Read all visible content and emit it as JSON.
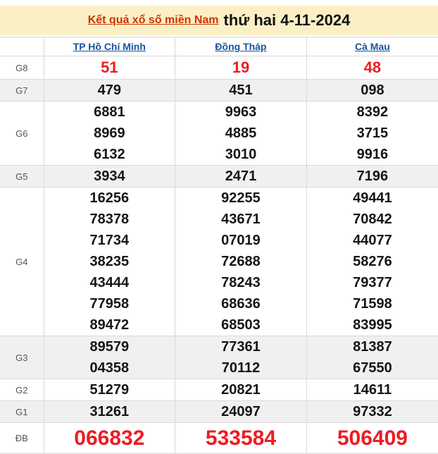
{
  "header": {
    "title_link": "Kết quả xổ số miền Nam",
    "title_date": "thứ hai 4-11-2024"
  },
  "table": {
    "columns": [
      "TP Hồ Chí Minh",
      "Đồng Tháp",
      "Cà Mau"
    ],
    "rows": [
      {
        "label": "G8",
        "style": "g8",
        "values": [
          [
            "51"
          ],
          [
            "19"
          ],
          [
            "48"
          ]
        ]
      },
      {
        "label": "G7",
        "style": "",
        "values": [
          [
            "479"
          ],
          [
            "451"
          ],
          [
            "098"
          ]
        ]
      },
      {
        "label": "G6",
        "style": "",
        "values": [
          [
            "6881",
            "8969",
            "6132"
          ],
          [
            "9963",
            "4885",
            "3010"
          ],
          [
            "8392",
            "3715",
            "9916"
          ]
        ]
      },
      {
        "label": "G5",
        "style": "",
        "values": [
          [
            "3934"
          ],
          [
            "2471"
          ],
          [
            "7196"
          ]
        ]
      },
      {
        "label": "G4",
        "style": "",
        "values": [
          [
            "16256",
            "78378",
            "71734",
            "38235",
            "43444",
            "77958",
            "89472"
          ],
          [
            "92255",
            "43671",
            "07019",
            "72688",
            "78243",
            "68636",
            "68503"
          ],
          [
            "49441",
            "70842",
            "44077",
            "58276",
            "79377",
            "71598",
            "83995"
          ]
        ]
      },
      {
        "label": "G3",
        "style": "",
        "values": [
          [
            "89579",
            "04358"
          ],
          [
            "77361",
            "70112"
          ],
          [
            "81387",
            "67550"
          ]
        ]
      },
      {
        "label": "G2",
        "style": "",
        "values": [
          [
            "51279"
          ],
          [
            "20821"
          ],
          [
            "14611"
          ]
        ]
      },
      {
        "label": "G1",
        "style": "",
        "values": [
          [
            "31261"
          ],
          [
            "24097"
          ],
          [
            "97332"
          ]
        ]
      },
      {
        "label": "ĐB",
        "style": "db",
        "values": [
          [
            "066832"
          ],
          [
            "533584"
          ],
          [
            "506409"
          ]
        ]
      }
    ]
  },
  "colors": {
    "title-red": "#cc3301",
    "number-red": "#ed1c24",
    "link-blue": "#15549c",
    "band-yellow": "#fbf0c5",
    "stripe-gray": "#f0f0f0",
    "border-gray": "#d9d9d9"
  }
}
